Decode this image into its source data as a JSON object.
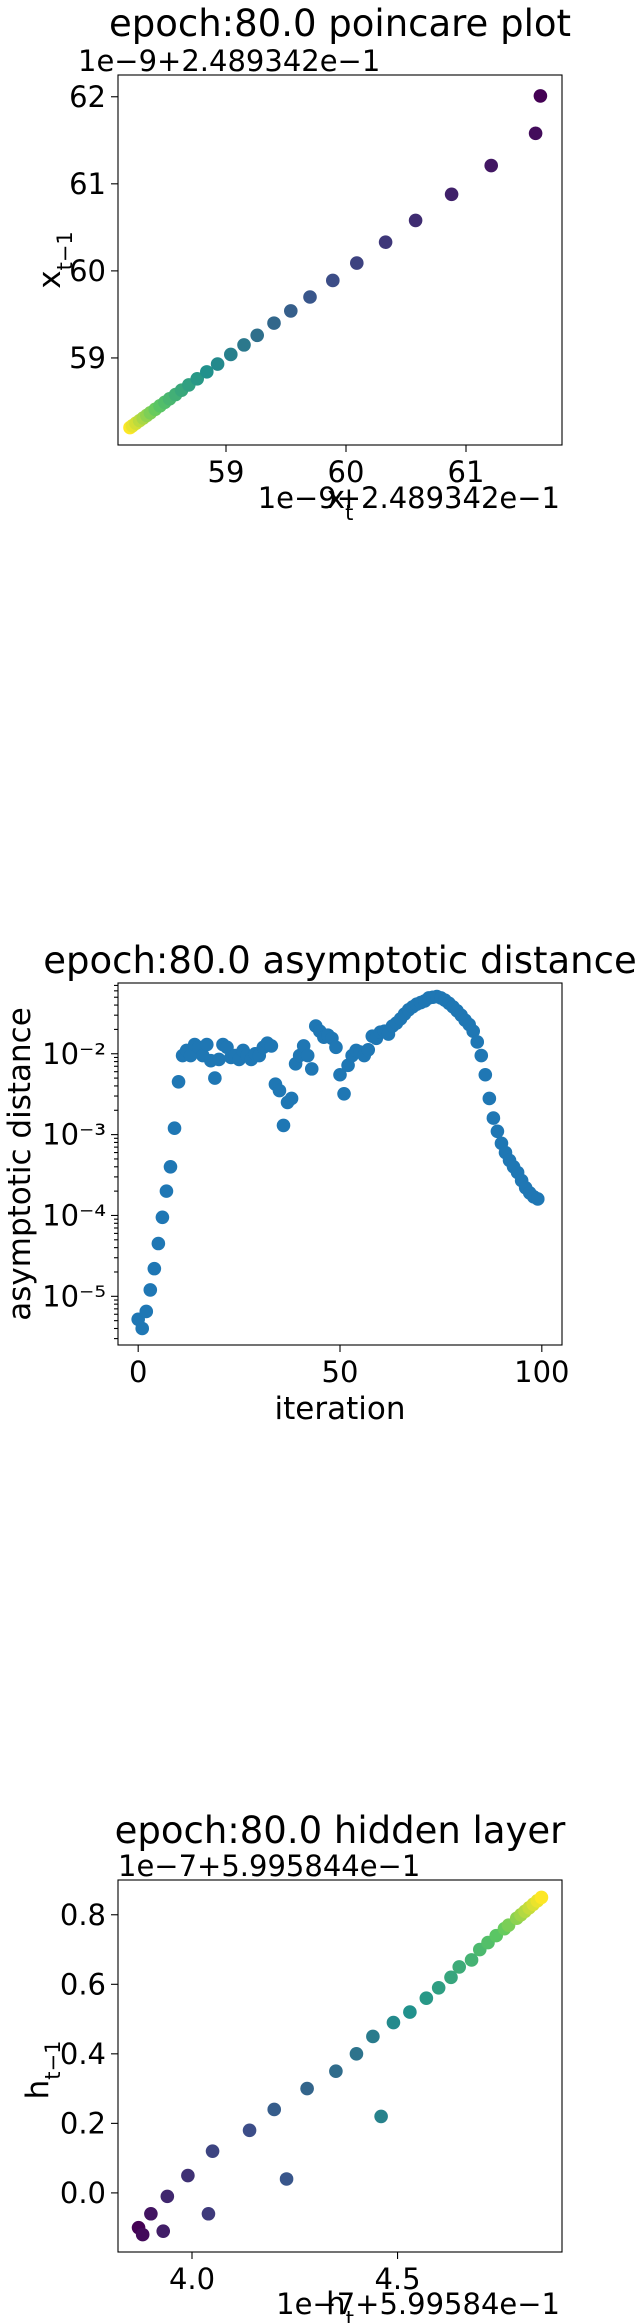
{
  "chart_data": [
    {
      "type": "scatter",
      "title": "epoch:80.0 poincare plot",
      "xlabel": "x_t",
      "ylabel": "x_{t-1}",
      "x_offset_text": "1e−9+2.489342e−1",
      "y_offset_text": "1e−9+2.489342e−1",
      "xlim": [
        58.1,
        61.8
      ],
      "ylim": [
        58.0,
        62.25
      ],
      "xticks": [
        "59",
        "60",
        "61"
      ],
      "yticks": [
        "59",
        "60",
        "61",
        "62"
      ],
      "colormap": "viridis",
      "points": [
        [
          58.2,
          58.2
        ],
        [
          58.22,
          58.22
        ],
        [
          58.25,
          58.25
        ],
        [
          58.28,
          58.28
        ],
        [
          58.31,
          58.31
        ],
        [
          58.34,
          58.34
        ],
        [
          58.37,
          58.37
        ],
        [
          58.41,
          58.41
        ],
        [
          58.45,
          58.45
        ],
        [
          58.49,
          58.49
        ],
        [
          58.53,
          58.53
        ],
        [
          58.58,
          58.58
        ],
        [
          58.63,
          58.63
        ],
        [
          58.69,
          58.69
        ],
        [
          58.76,
          58.76
        ],
        [
          58.84,
          58.84
        ],
        [
          58.93,
          58.93
        ],
        [
          59.04,
          59.04
        ],
        [
          59.15,
          59.15
        ],
        [
          59.26,
          59.26
        ],
        [
          59.4,
          59.4
        ],
        [
          59.54,
          59.54
        ],
        [
          59.7,
          59.7
        ],
        [
          59.89,
          59.89
        ],
        [
          60.09,
          60.09
        ],
        [
          60.33,
          60.33
        ],
        [
          60.58,
          60.58
        ],
        [
          60.88,
          60.88
        ],
        [
          61.21,
          61.21
        ],
        [
          61.58,
          61.58
        ],
        [
          61.62,
          62.01
        ]
      ]
    },
    {
      "type": "scatter",
      "title": "epoch:80.0 asymptotic distance",
      "xlabel": "iteration",
      "ylabel": "asymptotic distance",
      "yscale": "log",
      "xlim": [
        -5,
        105
      ],
      "ylim": [
        2.5e-06,
        0.075
      ],
      "xticks": [
        "0",
        "50",
        "100"
      ],
      "yticks": [
        "10⁻⁵",
        "10⁻⁴",
        "10⁻³",
        "10⁻²"
      ],
      "color": "#1f77b4",
      "values": [
        5.2e-06,
        4e-06,
        6.5e-06,
        1.2e-05,
        2.2e-05,
        4.5e-05,
        9.5e-05,
        0.0002,
        0.0004,
        0.0012,
        0.0045,
        0.0095,
        0.011,
        0.0095,
        0.013,
        0.012,
        0.0095,
        0.013,
        0.0082,
        0.005,
        0.0085,
        0.013,
        0.012,
        0.009,
        0.0095,
        0.0085,
        0.011,
        0.0095,
        0.0085,
        0.01,
        0.0095,
        0.012,
        0.0135,
        0.0125,
        0.0042,
        0.0035,
        0.0013,
        0.0025,
        0.0028,
        0.0075,
        0.0095,
        0.0125,
        0.0095,
        0.0065,
        0.022,
        0.019,
        0.016,
        0.017,
        0.0155,
        0.012,
        0.0055,
        0.0032,
        0.0072,
        0.0095,
        0.011,
        0.0105,
        0.0095,
        0.0112,
        0.0165,
        0.0155,
        0.0185,
        0.019,
        0.0175,
        0.022,
        0.024,
        0.027,
        0.031,
        0.035,
        0.038,
        0.041,
        0.043,
        0.045,
        0.049,
        0.05,
        0.051,
        0.049,
        0.046,
        0.042,
        0.038,
        0.034,
        0.03,
        0.026,
        0.023,
        0.019,
        0.014,
        0.0095,
        0.0055,
        0.0028,
        0.0016,
        0.0011,
        0.00078,
        0.0006,
        0.00048,
        0.0004,
        0.00034,
        0.00027,
        0.00022,
        0.00019,
        0.00017,
        0.00016
      ]
    },
    {
      "type": "scatter",
      "title": "epoch:80.0 hidden layer",
      "xlabel": "h_t",
      "ylabel": "h_{t-1}",
      "x_offset_text": "1e−7+5.99584e−1",
      "y_offset_text": "1e−7+5.995844e−1",
      "xlim": [
        3.82,
        4.9
      ],
      "ylim": [
        -0.17,
        0.9
      ],
      "xticks": [
        "4.0",
        "4.5"
      ],
      "yticks": [
        "0.0",
        "0.2",
        "0.4",
        "0.6",
        "0.8"
      ],
      "colormap": "viridis",
      "points": [
        [
          3.87,
          -0.1
        ],
        [
          3.88,
          -0.12
        ],
        [
          3.9,
          -0.06
        ],
        [
          3.93,
          -0.11
        ],
        [
          3.94,
          -0.01
        ],
        [
          3.99,
          0.05
        ],
        [
          4.04,
          -0.06
        ],
        [
          4.05,
          0.12
        ],
        [
          4.14,
          0.18
        ],
        [
          4.23,
          0.04
        ],
        [
          4.2,
          0.24
        ],
        [
          4.28,
          0.3
        ],
        [
          4.35,
          0.35
        ],
        [
          4.4,
          0.4
        ],
        [
          4.44,
          0.45
        ],
        [
          4.46,
          0.22
        ],
        [
          4.49,
          0.49
        ],
        [
          4.53,
          0.52
        ],
        [
          4.57,
          0.56
        ],
        [
          4.6,
          0.59
        ],
        [
          4.63,
          0.62
        ],
        [
          4.65,
          0.65
        ],
        [
          4.68,
          0.67
        ],
        [
          4.7,
          0.7
        ],
        [
          4.72,
          0.72
        ],
        [
          4.74,
          0.74
        ],
        [
          4.76,
          0.76
        ],
        [
          4.77,
          0.77
        ],
        [
          4.79,
          0.79
        ],
        [
          4.8,
          0.8
        ],
        [
          4.81,
          0.81
        ],
        [
          4.82,
          0.82
        ],
        [
          4.83,
          0.83
        ],
        [
          4.84,
          0.84
        ],
        [
          4.85,
          0.85
        ]
      ]
    }
  ]
}
